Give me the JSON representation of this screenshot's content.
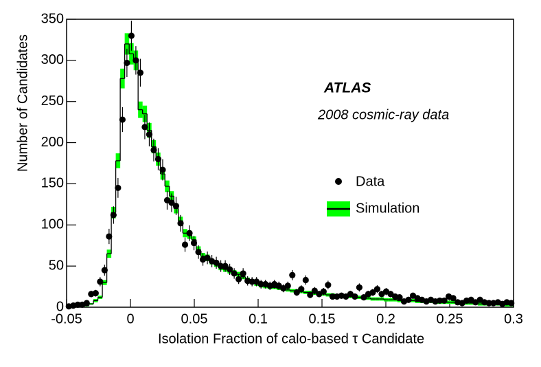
{
  "chart_data": {
    "type": "histogram",
    "xlabel": "Isolation Fraction of calo-based τ Candidate",
    "ylabel": "Number of Candidates",
    "annotations": [
      "ATLAS",
      "2008 cosmic-ray data"
    ],
    "bins": [
      -0.05,
      -0.0465,
      -0.043,
      -0.0395,
      -0.036,
      -0.0325,
      -0.029,
      -0.0255,
      -0.022,
      -0.0185,
      -0.015,
      -0.0115,
      -0.008,
      -0.0045,
      -0.001,
      0.0025,
      0.006,
      0.0095,
      0.013,
      0.0165,
      0.02,
      0.0235,
      0.027,
      0.0305,
      0.034,
      0.0375,
      0.041,
      0.0445,
      0.048,
      0.0515,
      0.055,
      0.0585,
      0.062,
      0.0655,
      0.069,
      0.0725,
      0.076,
      0.0795,
      0.083,
      0.0865,
      0.09,
      0.0935,
      0.097,
      0.1005,
      0.104,
      0.1075,
      0.111,
      0.1145,
      0.118,
      0.1215,
      0.125,
      0.1285,
      0.132,
      0.1355,
      0.139,
      0.1425,
      0.146,
      0.1495,
      0.153,
      0.1565,
      0.16,
      0.1635,
      0.167,
      0.1705,
      0.174,
      0.1775,
      0.181,
      0.1845,
      0.188,
      0.1915,
      0.195,
      0.1985,
      0.202,
      0.2055,
      0.209,
      0.2125,
      0.216,
      0.2195,
      0.223,
      0.2265,
      0.23,
      0.2335,
      0.237,
      0.2405,
      0.244,
      0.2475,
      0.251,
      0.2545,
      0.258,
      0.2615,
      0.265,
      0.2685,
      0.272,
      0.2755,
      0.279,
      0.2825,
      0.286,
      0.2895,
      0.293,
      0.2965,
      0.3
    ],
    "series": [
      {
        "name": "Data",
        "color": "#000000",
        "values": [
          1,
          2,
          3,
          3,
          5,
          16,
          17,
          31,
          45,
          86,
          112,
          145,
          228,
          297,
          330,
          300,
          285,
          219,
          210,
          191,
          180,
          167,
          130,
          127,
          123,
          102,
          76,
          90,
          78,
          67,
          58,
          60,
          56,
          54,
          50,
          50,
          46,
          41,
          34,
          41,
          32,
          31,
          31,
          28,
          28,
          26,
          28,
          26,
          23,
          26,
          39,
          18,
          22,
          33,
          15,
          20,
          16,
          19,
          27,
          13,
          13,
          14,
          13,
          16,
          13,
          24,
          12,
          16,
          18,
          22,
          16,
          19,
          16,
          13,
          12,
          7,
          9,
          14,
          11,
          9,
          7,
          9,
          7,
          8,
          8,
          13,
          11,
          6,
          5,
          8,
          9,
          6,
          9,
          6,
          5,
          5,
          6,
          4,
          6,
          5
        ],
        "errors": [
          1,
          1.4,
          1.7,
          1.7,
          2.2,
          4,
          4.1,
          5.6,
          6.7,
          9.3,
          10.6,
          12,
          15.1,
          17.2,
          18.2,
          17.3,
          16.9,
          14.8,
          14.5,
          13.8,
          13.4,
          12.9,
          11.4,
          11.3,
          11.1,
          10.1,
          8.7,
          9.5,
          8.8,
          8.2,
          7.6,
          7.7,
          7.5,
          7.3,
          7.1,
          7.1,
          6.8,
          6.4,
          5.8,
          6.4,
          5.7,
          5.6,
          5.6,
          5.3,
          5.3,
          5.1,
          5.3,
          5.1,
          4.8,
          5.1,
          6.2,
          4.2,
          4.7,
          5.7,
          3.9,
          4.5,
          4,
          4.4,
          5.2,
          3.6,
          3.6,
          3.7,
          3.6,
          4,
          3.6,
          4.9,
          3.5,
          4,
          4.2,
          4.7,
          4,
          4.4,
          4,
          3.6,
          3.5,
          2.6,
          3,
          3.7,
          3.3,
          3,
          2.6,
          3,
          2.6,
          2.8,
          2.8,
          3.6,
          3.3,
          2.4,
          2.2,
          2.8,
          3,
          2.4,
          3,
          2.4,
          2.2,
          2.2,
          2.4,
          2,
          2.4,
          2.2
        ]
      },
      {
        "name": "Simulation",
        "color": "#000000",
        "band_color": "#00ff00",
        "values": [
          0,
          1,
          1,
          2,
          2,
          4,
          8,
          12,
          30,
          65,
          115,
          178,
          278,
          320,
          308,
          300,
          240,
          235,
          215,
          195,
          180,
          162,
          147,
          135,
          120,
          105,
          90,
          88,
          82,
          70,
          62,
          60,
          55,
          52,
          48,
          46,
          44,
          42,
          40,
          37,
          33,
          31,
          29,
          27,
          26,
          25,
          24,
          23,
          22,
          21,
          20,
          20,
          19,
          18,
          18,
          17,
          16,
          16,
          15,
          15,
          14,
          14,
          13,
          13,
          12,
          12,
          11,
          11,
          10,
          10,
          10,
          9,
          9,
          9,
          8,
          8,
          8,
          8,
          7,
          7,
          7,
          7,
          6,
          6,
          6,
          6,
          6,
          5,
          5,
          5,
          5,
          5,
          4,
          4,
          4,
          4,
          4,
          4,
          3,
          3
        ],
        "errors": [
          1,
          1,
          1,
          1,
          1,
          1,
          2,
          2,
          3,
          5,
          7,
          9,
          12,
          13,
          13,
          12,
          10,
          10,
          9,
          8,
          8,
          7,
          7,
          6,
          6,
          5,
          5,
          5,
          4,
          4,
          4,
          4,
          3,
          3,
          3,
          3,
          3,
          3,
          3,
          3,
          3,
          3,
          3,
          3,
          3,
          3,
          2,
          2,
          2,
          2,
          2,
          2,
          2,
          2,
          2,
          2,
          2,
          2,
          2,
          2,
          2,
          2,
          2,
          2,
          2,
          2,
          2,
          2,
          2,
          2,
          2,
          2,
          2,
          2,
          2,
          2,
          2,
          2,
          2,
          2,
          2,
          2,
          2,
          2,
          2,
          2,
          2,
          2,
          2,
          2,
          2,
          2,
          2,
          2,
          2,
          2,
          2,
          2,
          2,
          2
        ]
      }
    ],
    "xlim": [
      -0.05,
      0.3
    ],
    "xticks": [
      -0.05,
      0,
      0.05,
      0.1,
      0.15,
      0.2,
      0.25,
      0.3
    ],
    "ylim": [
      0,
      350
    ],
    "yticks": [
      0,
      50,
      100,
      150,
      200,
      250,
      300,
      350
    ],
    "grid": false
  }
}
